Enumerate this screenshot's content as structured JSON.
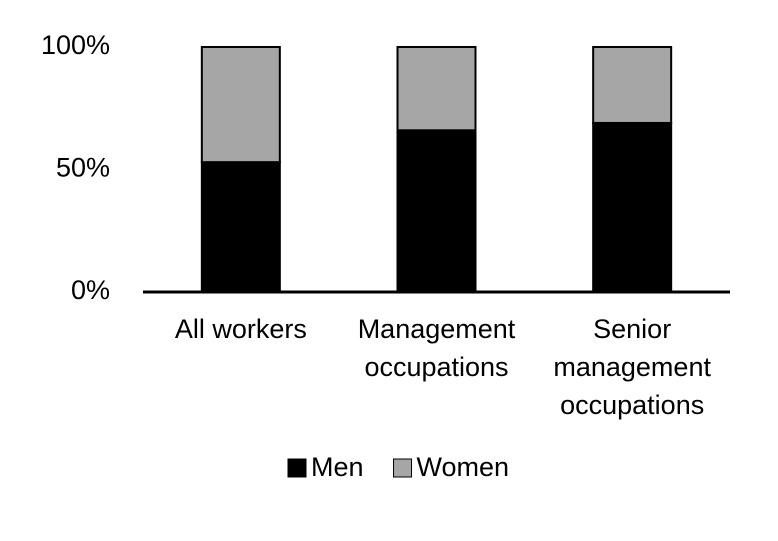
{
  "chart_data": {
    "type": "stacked_bar",
    "categories": [
      [
        "All workers"
      ],
      [
        "Management",
        "occupations"
      ],
      [
        "Senior",
        "management",
        "occupations"
      ]
    ],
    "series": [
      {
        "name": "Men",
        "color": "#000000",
        "values": [
          53,
          66,
          69
        ]
      },
      {
        "name": "Women",
        "color": "#a6a6a6",
        "values": [
          47,
          34,
          31
        ]
      }
    ],
    "ylim": [
      0,
      100
    ],
    "yticks": [
      {
        "value": 0,
        "label": "0%"
      },
      {
        "value": 50,
        "label": "50%"
      },
      {
        "value": 100,
        "label": "100%"
      }
    ],
    "legend": "bottom"
  }
}
